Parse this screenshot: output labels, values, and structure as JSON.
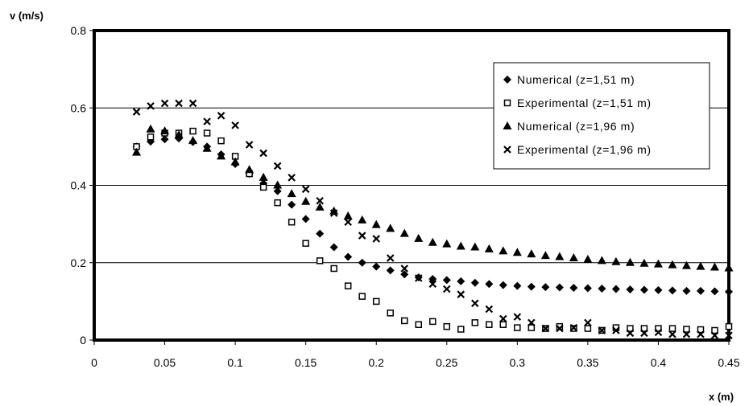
{
  "chart_data": {
    "type": "scatter",
    "title": "",
    "xlabel": "x (m)",
    "ylabel": "v (m/s)",
    "xlim": [
      0,
      0.45
    ],
    "ylim": [
      0,
      0.8
    ],
    "xticks": [
      "0",
      "0.05",
      "0.1",
      "0.15",
      "0.2",
      "0.25",
      "0.3",
      "0.35",
      "0.4",
      "0.45"
    ],
    "yticks": [
      "0",
      "0.2",
      "0.4",
      "0.6",
      "0.8"
    ],
    "grid": "horizontal",
    "legend_position": "top-right",
    "series": [
      {
        "name": "Numerical (z=1,51 m)",
        "marker": "diamond",
        "x": [
          0.03,
          0.04,
          0.05,
          0.06,
          0.07,
          0.08,
          0.09,
          0.1,
          0.11,
          0.12,
          0.13,
          0.14,
          0.15,
          0.16,
          0.17,
          0.18,
          0.19,
          0.2,
          0.21,
          0.22,
          0.23,
          0.24,
          0.25,
          0.26,
          0.27,
          0.28,
          0.29,
          0.3,
          0.31,
          0.32,
          0.33,
          0.34,
          0.35,
          0.36,
          0.37,
          0.38,
          0.39,
          0.4,
          0.41,
          0.42,
          0.43,
          0.44,
          0.45
        ],
        "y": [
          0.5,
          0.513,
          0.519,
          0.521,
          0.512,
          0.5,
          0.48,
          0.455,
          0.43,
          0.405,
          0.385,
          0.35,
          0.313,
          0.275,
          0.24,
          0.215,
          0.2,
          0.19,
          0.18,
          0.17,
          0.162,
          0.158,
          0.155,
          0.152,
          0.148,
          0.145,
          0.142,
          0.14,
          0.138,
          0.137,
          0.136,
          0.135,
          0.134,
          0.133,
          0.132,
          0.131,
          0.13,
          0.129,
          0.128,
          0.127,
          0.127,
          0.126,
          0.125
        ]
      },
      {
        "name": "Experimental (z=1,51 m)",
        "marker": "square",
        "x": [
          0.03,
          0.04,
          0.05,
          0.06,
          0.07,
          0.08,
          0.09,
          0.1,
          0.11,
          0.12,
          0.13,
          0.14,
          0.15,
          0.16,
          0.17,
          0.18,
          0.19,
          0.2,
          0.21,
          0.22,
          0.23,
          0.24,
          0.25,
          0.26,
          0.27,
          0.28,
          0.29,
          0.3,
          0.31,
          0.32,
          0.33,
          0.34,
          0.35,
          0.36,
          0.37,
          0.38,
          0.39,
          0.4,
          0.41,
          0.42,
          0.43,
          0.44,
          0.45
        ],
        "y": [
          0.5,
          0.525,
          0.535,
          0.535,
          0.54,
          0.535,
          0.515,
          0.475,
          0.43,
          0.395,
          0.355,
          0.305,
          0.25,
          0.205,
          0.185,
          0.14,
          0.113,
          0.1,
          0.07,
          0.05,
          0.04,
          0.048,
          0.035,
          0.028,
          0.045,
          0.04,
          0.04,
          0.032,
          0.032,
          0.03,
          0.035,
          0.03,
          0.03,
          0.025,
          0.032,
          0.03,
          0.03,
          0.03,
          0.03,
          0.028,
          0.027,
          0.025,
          0.035
        ]
      },
      {
        "name": "Numerical (z=1,96 m)",
        "marker": "triangle",
        "x": [
          0.03,
          0.04,
          0.05,
          0.06,
          0.07,
          0.08,
          0.09,
          0.1,
          0.11,
          0.12,
          0.13,
          0.14,
          0.15,
          0.16,
          0.17,
          0.18,
          0.19,
          0.2,
          0.21,
          0.22,
          0.23,
          0.24,
          0.25,
          0.26,
          0.27,
          0.28,
          0.29,
          0.3,
          0.31,
          0.32,
          0.33,
          0.34,
          0.35,
          0.36,
          0.37,
          0.38,
          0.39,
          0.4,
          0.41,
          0.42,
          0.43,
          0.44,
          0.45
        ],
        "y": [
          0.485,
          0.545,
          0.54,
          0.53,
          0.515,
          0.495,
          0.475,
          0.46,
          0.44,
          0.42,
          0.4,
          0.378,
          0.358,
          0.343,
          0.333,
          0.32,
          0.31,
          0.298,
          0.288,
          0.275,
          0.262,
          0.252,
          0.248,
          0.242,
          0.24,
          0.235,
          0.23,
          0.226,
          0.222,
          0.218,
          0.215,
          0.212,
          0.208,
          0.205,
          0.202,
          0.2,
          0.198,
          0.196,
          0.194,
          0.192,
          0.19,
          0.188,
          0.186
        ]
      },
      {
        "name": "Experimental (z=1,96 m)",
        "marker": "x",
        "x": [
          0.03,
          0.04,
          0.05,
          0.06,
          0.07,
          0.08,
          0.09,
          0.1,
          0.11,
          0.12,
          0.13,
          0.14,
          0.15,
          0.16,
          0.17,
          0.18,
          0.19,
          0.2,
          0.21,
          0.22,
          0.23,
          0.24,
          0.25,
          0.26,
          0.27,
          0.28,
          0.29,
          0.3,
          0.31,
          0.32,
          0.33,
          0.34,
          0.35,
          0.36,
          0.37,
          0.38,
          0.39,
          0.4,
          0.41,
          0.42,
          0.43,
          0.44,
          0.45
        ],
        "y": [
          0.59,
          0.605,
          0.612,
          0.612,
          0.612,
          0.565,
          0.58,
          0.555,
          0.505,
          0.483,
          0.45,
          0.42,
          0.39,
          0.36,
          0.328,
          0.305,
          0.27,
          0.262,
          0.212,
          0.185,
          0.16,
          0.145,
          0.132,
          0.118,
          0.095,
          0.08,
          0.055,
          0.06,
          0.045,
          0.03,
          0.03,
          0.032,
          0.045,
          0.025,
          0.025,
          0.018,
          0.018,
          0.02,
          0.015,
          0.015,
          0.015,
          0.012,
          0.012
        ]
      }
    ]
  }
}
